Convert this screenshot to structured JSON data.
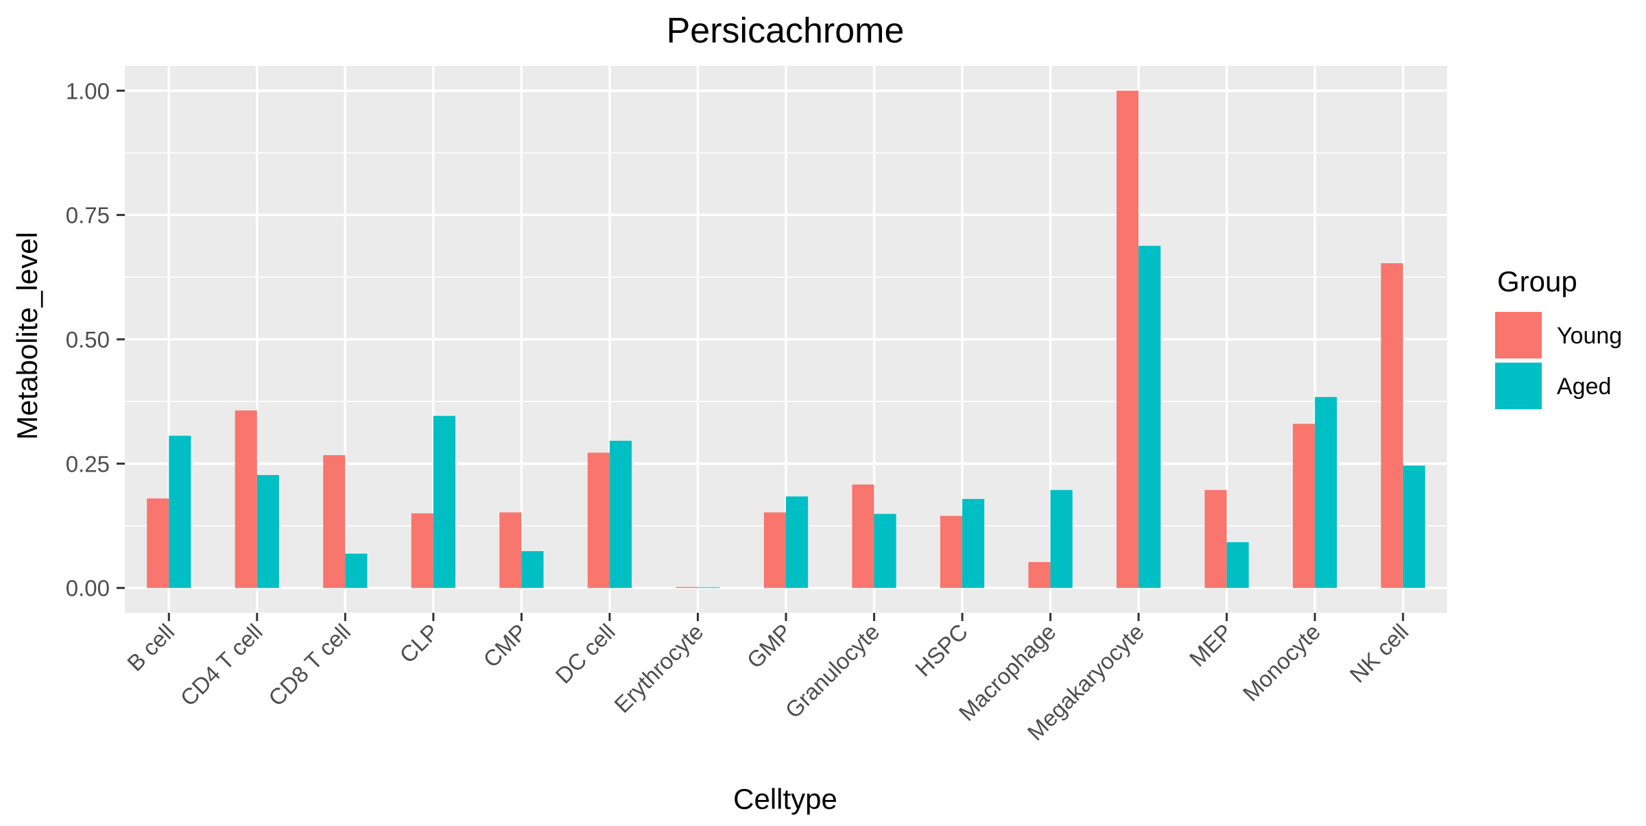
{
  "chart_data": {
    "type": "bar",
    "title": "Persicachrome",
    "xlabel": "Celltype",
    "ylabel": "Metabolite_level",
    "ylim": [
      -0.05,
      1.05
    ],
    "yticks": [
      0.0,
      0.25,
      0.5,
      0.75,
      1.0
    ],
    "ytick_labels": [
      "0.00",
      "0.25",
      "0.50",
      "0.75",
      "1.00"
    ],
    "grid": true,
    "categories": [
      "B cell",
      "CD4 T cell",
      "CD8 T cell",
      "CLP",
      "CMP",
      "DC cell",
      "Erythrocyte",
      "GMP",
      "Granulocyte",
      "HSPC",
      "Macrophage",
      "Megakaryocyte",
      "MEP",
      "Monocyte",
      "NK cell"
    ],
    "series": [
      {
        "name": "Young",
        "color": "#F8766D",
        "values": [
          0.18,
          0.357,
          0.267,
          0.15,
          0.152,
          0.272,
          0.002,
          0.152,
          0.208,
          0.145,
          0.052,
          1.0,
          0.197,
          0.33,
          0.653
        ]
      },
      {
        "name": "Aged",
        "color": "#00BFC4",
        "values": [
          0.306,
          0.227,
          0.069,
          0.346,
          0.074,
          0.296,
          0.0,
          0.184,
          0.149,
          0.179,
          0.197,
          0.688,
          0.092,
          0.384,
          0.246
        ]
      }
    ],
    "legend": {
      "title": "Group",
      "position": "right"
    },
    "colors": {
      "panel_background": "#EBEBEB",
      "grid": "#FFFFFF",
      "tick": "#333333"
    }
  }
}
